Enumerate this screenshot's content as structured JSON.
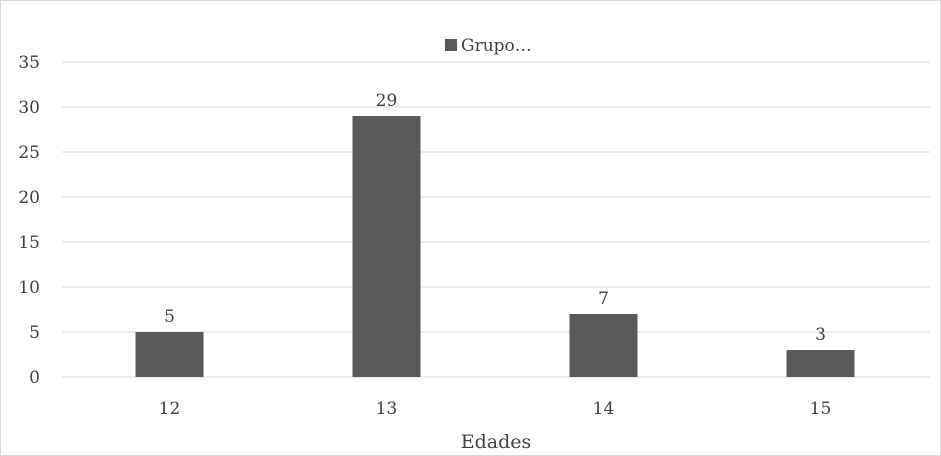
{
  "chart_data": {
    "type": "bar",
    "categories": [
      "12",
      "13",
      "14",
      "15"
    ],
    "series": [
      {
        "name": "Grupo…",
        "values": [
          5,
          29,
          7,
          3
        ]
      }
    ],
    "data_labels": [
      "5",
      "29",
      "7",
      "3"
    ],
    "title": "",
    "xlabel": "Edades",
    "ylabel": "",
    "ylim": [
      0,
      35
    ],
    "yticks": [
      0,
      5,
      10,
      15,
      20,
      25,
      30,
      35
    ],
    "grid": true,
    "legend_position": "top-center",
    "colors": {
      "bar": "#595959",
      "grid": "#d9d9d9",
      "axis": "#d9d9d9",
      "text": "#404040"
    }
  }
}
